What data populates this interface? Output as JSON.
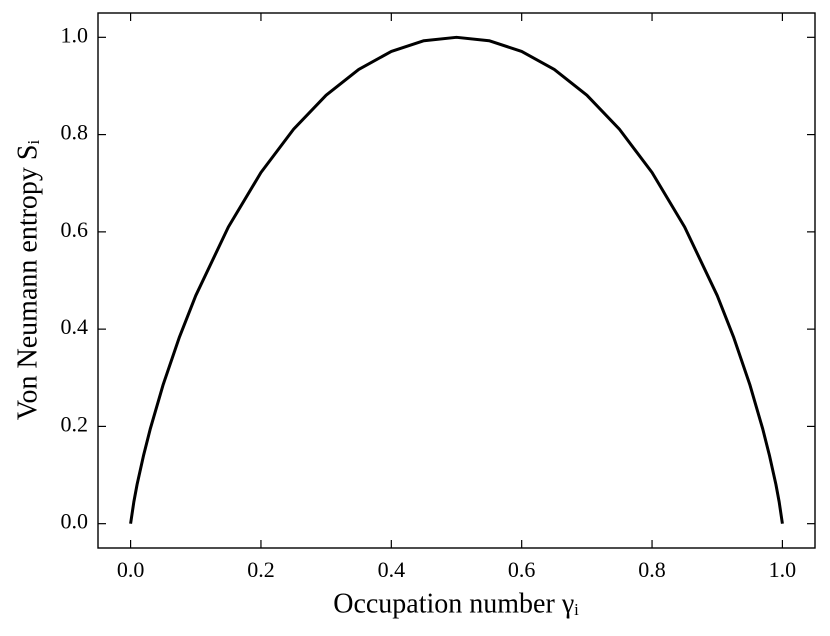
{
  "chart_data": {
    "type": "line",
    "x_label": "Occupation number γᵢ",
    "y_label": "Von Neumann entropy Sᵢ",
    "series": [
      {
        "color": "#000000",
        "x": [
          0,
          0.005,
          0.01,
          0.02,
          0.03,
          0.05,
          0.075,
          0.1,
          0.15,
          0.2,
          0.25,
          0.3,
          0.35,
          0.4,
          0.45,
          0.5,
          0.55,
          0.6,
          0.65,
          0.7,
          0.75,
          0.8,
          0.85,
          0.9,
          0.925,
          0.95,
          0.97,
          0.98,
          0.99,
          0.995,
          1
        ],
        "values": [
          0,
          0.045,
          0.081,
          0.141,
          0.194,
          0.286,
          0.384,
          0.469,
          0.61,
          0.722,
          0.811,
          0.881,
          0.934,
          0.971,
          0.993,
          1,
          0.993,
          0.971,
          0.934,
          0.881,
          0.811,
          0.722,
          0.61,
          0.469,
          0.384,
          0.286,
          0.194,
          0.141,
          0.081,
          0.045,
          0
        ]
      }
    ],
    "xlim": [
      -0.05,
      1.05
    ],
    "ylim": [
      -0.05,
      1.05
    ],
    "xticks": [
      {
        "value": 0,
        "label": "0.0"
      },
      0.2,
      0.4,
      0.6,
      0.8,
      {
        "value": 1,
        "label": "1.0"
      }
    ],
    "yticks": [
      {
        "value": 0,
        "label": "0.0"
      },
      0.2,
      0.4,
      0.6,
      0.8,
      {
        "value": 1,
        "label": "1.0"
      }
    ],
    "grid": false
  }
}
